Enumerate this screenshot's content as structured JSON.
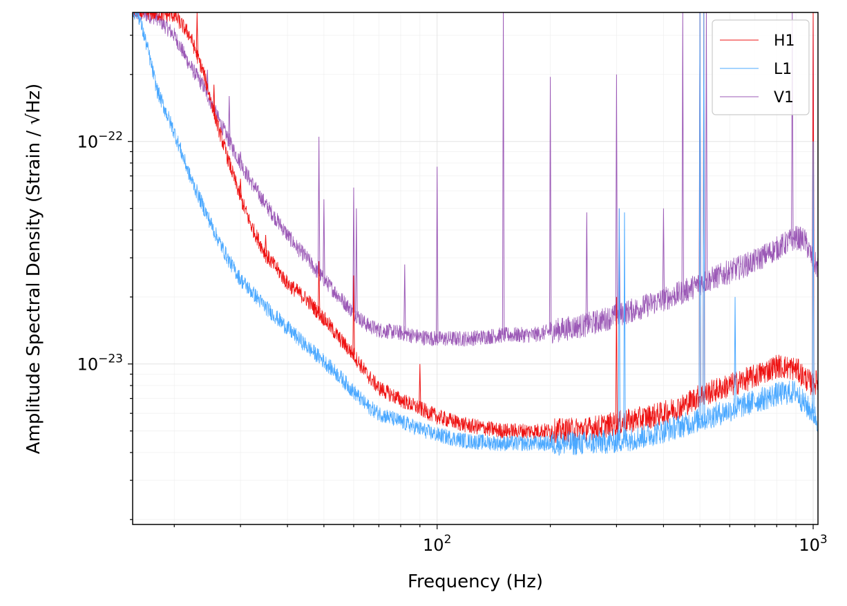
{
  "chart_data": {
    "type": "line",
    "title": "",
    "xlabel": "Frequency (Hz)",
    "ylabel": "Amplitude Spectral Density (Strain / √Hz)",
    "xscale": "log",
    "yscale": "log",
    "xlim": [
      15.5,
      1030
    ],
    "ylim": [
      1.9e-24,
      3.8e-22
    ],
    "grid": true,
    "legend_position": "top-right",
    "x_major_ticks": [
      {
        "value": 100,
        "base": "10",
        "exp": "2"
      },
      {
        "value": 1000,
        "base": "10",
        "exp": "3"
      }
    ],
    "y_major_ticks": [
      {
        "value": 1e-23,
        "base": "10",
        "exp": "−23"
      },
      {
        "value": 1e-22,
        "base": "10",
        "exp": "−22"
      }
    ],
    "series": [
      {
        "name": "V1",
        "color": "#9b59b6",
        "points": [
          [
            16,
            3.8e-22
          ],
          [
            18,
            3.6e-22
          ],
          [
            20,
            3e-22
          ],
          [
            22,
            2.2e-22
          ],
          [
            24,
            1.75e-22
          ],
          [
            26,
            1.3e-22
          ],
          [
            28,
            1e-22
          ],
          [
            30,
            8e-23
          ],
          [
            32,
            6.6e-23
          ],
          [
            35,
            5.2e-23
          ],
          [
            38,
            4.3e-23
          ],
          [
            40,
            3.8e-23
          ],
          [
            42,
            3.4e-23
          ],
          [
            45,
            3e-23
          ],
          [
            48,
            2.6e-23
          ],
          [
            50,
            2.4e-23
          ],
          [
            55,
            2e-23
          ],
          [
            60,
            1.7e-23
          ],
          [
            65,
            1.5e-23
          ],
          [
            70,
            1.42e-23
          ],
          [
            80,
            1.38e-23
          ],
          [
            90,
            1.32e-23
          ],
          [
            100,
            1.3e-23
          ],
          [
            120,
            1.3e-23
          ],
          [
            150,
            1.35e-23
          ],
          [
            180,
            1.35e-23
          ],
          [
            200,
            1.4e-23
          ],
          [
            250,
            1.5e-23
          ],
          [
            300,
            1.65e-23
          ],
          [
            350,
            1.8e-23
          ],
          [
            400,
            1.95e-23
          ],
          [
            450,
            2.1e-23
          ],
          [
            500,
            2.3e-23
          ],
          [
            600,
            2.6e-23
          ],
          [
            700,
            2.9e-23
          ],
          [
            800,
            3.3e-23
          ],
          [
            900,
            3.7e-23
          ],
          [
            950,
            3.6e-23
          ],
          [
            1000,
            2.9e-23
          ],
          [
            1030,
            2.7e-23
          ]
        ],
        "peaks": [
          [
            24.5,
            2.1e-22
          ],
          [
            28,
            1.6e-22
          ],
          [
            30,
            9e-23
          ],
          [
            48.5,
            1.05e-22
          ],
          [
            50,
            5.5e-23
          ],
          [
            60,
            6.2e-23
          ],
          [
            61,
            5e-23
          ],
          [
            82,
            2.8e-23
          ],
          [
            100,
            7.7e-23
          ],
          [
            150,
            3.8e-22
          ],
          [
            200,
            1.95e-22
          ],
          [
            250,
            4.8e-23
          ],
          [
            300,
            2e-22
          ],
          [
            305,
            5e-23
          ],
          [
            400,
            5e-23
          ],
          [
            450,
            3.8e-22
          ],
          [
            500,
            3.8e-22
          ],
          [
            520,
            3.8e-22
          ],
          [
            880,
            3.8e-22
          ],
          [
            1000,
            3.8e-22
          ]
        ]
      },
      {
        "name": "H1",
        "color": "#ee1111",
        "points": [
          [
            17,
            3.8e-22
          ],
          [
            20,
            3.7e-22
          ],
          [
            22,
            3e-22
          ],
          [
            24,
            2e-22
          ],
          [
            26,
            1.2e-22
          ],
          [
            28,
            8e-23
          ],
          [
            30,
            5.6e-23
          ],
          [
            32,
            4.2e-23
          ],
          [
            35,
            3.1e-23
          ],
          [
            38,
            2.6e-23
          ],
          [
            40,
            2.3e-23
          ],
          [
            45,
            1.95e-23
          ],
          [
            50,
            1.6e-23
          ],
          [
            55,
            1.3e-23
          ],
          [
            60,
            1.1e-23
          ],
          [
            65,
            9e-24
          ],
          [
            70,
            7.8e-24
          ],
          [
            80,
            6.9e-24
          ],
          [
            90,
            6.3e-24
          ],
          [
            100,
            5.8e-24
          ],
          [
            120,
            5.3e-24
          ],
          [
            150,
            5e-24
          ],
          [
            200,
            5e-24
          ],
          [
            250,
            5.1e-24
          ],
          [
            300,
            5.4e-24
          ],
          [
            350,
            5.7e-24
          ],
          [
            400,
            6e-24
          ],
          [
            450,
            6.5e-24
          ],
          [
            500,
            7.2e-24
          ],
          [
            600,
            8e-24
          ],
          [
            700,
            8.8e-24
          ],
          [
            800,
            9.8e-24
          ],
          [
            900,
            9.5e-24
          ],
          [
            1000,
            8e-24
          ],
          [
            1030,
            8.5e-24
          ]
        ],
        "peaks": [
          [
            23,
            3.8e-22
          ],
          [
            25.5,
            1.8e-22
          ],
          [
            30,
            6.8e-23
          ],
          [
            35,
            3.8e-23
          ],
          [
            48.5,
            2.9e-23
          ],
          [
            60,
            2.5e-23
          ],
          [
            90,
            1e-23
          ],
          [
            300,
            2e-23
          ],
          [
            500,
            3.8e-22
          ],
          [
            512,
            3.8e-22
          ],
          [
            1000,
            3.8e-22
          ]
        ]
      },
      {
        "name": "L1",
        "color": "#4aa8ff",
        "points": [
          [
            16,
            3.8e-22
          ],
          [
            17,
            2.6e-22
          ],
          [
            18,
            1.7e-22
          ],
          [
            20,
            1.1e-22
          ],
          [
            22,
            7e-23
          ],
          [
            24,
            5e-23
          ],
          [
            26,
            3.7e-23
          ],
          [
            28,
            2.9e-23
          ],
          [
            30,
            2.4e-23
          ],
          [
            35,
            1.8e-23
          ],
          [
            40,
            1.45e-23
          ],
          [
            45,
            1.2e-23
          ],
          [
            50,
            1.03e-23
          ],
          [
            55,
            8.8e-24
          ],
          [
            60,
            7.5e-24
          ],
          [
            65,
            6.5e-24
          ],
          [
            70,
            6e-24
          ],
          [
            80,
            5.5e-24
          ],
          [
            90,
            5.1e-24
          ],
          [
            100,
            4.8e-24
          ],
          [
            120,
            4.5e-24
          ],
          [
            150,
            4.4e-24
          ],
          [
            200,
            4.4e-24
          ],
          [
            250,
            4.4e-24
          ],
          [
            300,
            4.5e-24
          ],
          [
            350,
            4.7e-24
          ],
          [
            400,
            5e-24
          ],
          [
            450,
            5.3e-24
          ],
          [
            500,
            5.6e-24
          ],
          [
            600,
            6.2e-24
          ],
          [
            700,
            6.8e-24
          ],
          [
            800,
            7.3e-24
          ],
          [
            900,
            7.5e-24
          ],
          [
            950,
            6.6e-24
          ],
          [
            1000,
            6e-24
          ],
          [
            1030,
            5.5e-24
          ]
        ],
        "peaks": [
          [
            305,
            5e-23
          ],
          [
            315,
            4.8e-23
          ],
          [
            500,
            3.8e-22
          ],
          [
            512,
            3.8e-22
          ],
          [
            620,
            2e-23
          ],
          [
            1000,
            1e-22
          ]
        ]
      }
    ]
  }
}
